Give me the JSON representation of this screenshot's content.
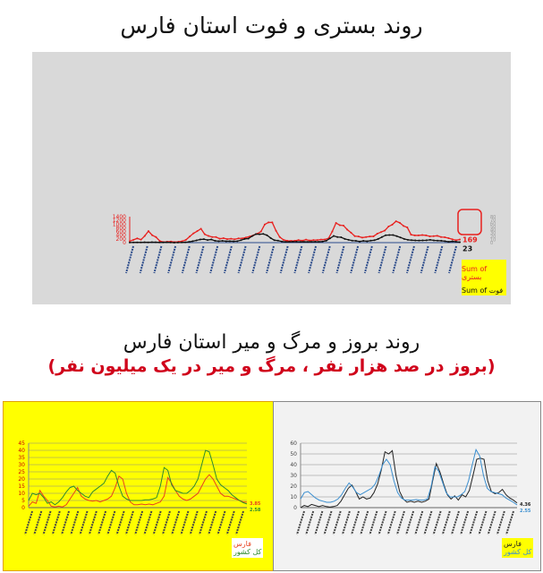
{
  "titles": {
    "top": "روند بستری و فوت استان فارس",
    "bottom": "روند بروز و مرگ و میر استان فارس",
    "bottom_sub": "(بروز در صد هزار نفر ، مرگ و میر در یک میلیون نفر)"
  },
  "chart_data": [
    {
      "type": "line",
      "ylim": [
        0,
        1400
      ],
      "yticks": [
        0,
        200,
        400,
        600,
        800,
        1000,
        1200,
        1400
      ],
      "y2ticks": [
        0,
        10,
        20,
        30,
        40,
        50,
        60,
        70,
        80
      ],
      "legend_position": "bottom-right",
      "annotations": [
        "169",
        "23"
      ],
      "series": [
        {
          "name": "Sum of بستری",
          "color": "#e8201e",
          "values": [
            80,
            150,
            230,
            160,
            360,
            620,
            400,
            300,
            90,
            30,
            50,
            60,
            30,
            50,
            80,
            150,
            330,
            500,
            620,
            750,
            450,
            360,
            300,
            300,
            210,
            240,
            190,
            210,
            180,
            230,
            230,
            280,
            330,
            400,
            480,
            600,
            980,
            1090,
            1090,
            640,
            300,
            150,
            100,
            95,
            100,
            140,
            110,
            160,
            115,
            140,
            140,
            165,
            170,
            230,
            600,
            1060,
            940,
            920,
            700,
            540,
            350,
            330,
            270,
            300,
            330,
            340,
            480,
            570,
            650,
            870,
            970,
            1150,
            1070,
            900,
            820,
            430,
            390,
            390,
            410,
            390,
            340,
            350,
            370,
            300,
            290,
            240,
            180,
            130,
            169
          ]
        },
        {
          "name": "Sum of فوت",
          "color": "#111111",
          "values": [
            5,
            10,
            15,
            10,
            20,
            15,
            25,
            20,
            10,
            15,
            20,
            10,
            0,
            5,
            10,
            20,
            40,
            80,
            120,
            170,
            185,
            140,
            170,
            100,
            80,
            95,
            75,
            80,
            70,
            80,
            130,
            200,
            220,
            350,
            460,
            450,
            470,
            400,
            250,
            130,
            110,
            60,
            40,
            40,
            50,
            50,
            40,
            45,
            40,
            45,
            50,
            45,
            60,
            100,
            230,
            360,
            300,
            290,
            200,
            150,
            110,
            95,
            60,
            95,
            75,
            110,
            130,
            200,
            300,
            400,
            410,
            410,
            350,
            280,
            200,
            150,
            130,
            120,
            115,
            120,
            125,
            150,
            120,
            110,
            100,
            80,
            45,
            70,
            50,
            23
          ]
        }
      ]
    },
    {
      "type": "line",
      "ylim": [
        0,
        45
      ],
      "yticks": [
        0,
        5,
        10,
        15,
        20,
        25,
        30,
        35,
        40,
        45
      ],
      "grid": true,
      "legend_position": "bottom-right",
      "end_labels": [
        "3.85",
        "2.58"
      ],
      "series": [
        {
          "name": "فارس",
          "color": "#e8401e",
          "values": [
            1,
            4,
            3,
            12,
            8,
            5,
            1,
            0.5,
            1,
            0.5,
            2,
            6,
            10,
            14,
            8,
            6,
            5,
            4.5,
            5,
            4,
            5,
            6,
            8,
            14,
            22,
            20,
            10,
            4,
            2,
            2,
            2.5,
            2,
            2.5,
            2,
            3,
            4,
            8,
            21,
            17,
            12,
            8,
            6,
            5,
            6,
            8,
            10,
            15,
            20,
            23,
            20,
            15,
            10,
            8,
            8,
            7,
            6,
            5,
            4,
            3.85
          ]
        },
        {
          "name": "کل کشور",
          "color": "#2e8b2e",
          "values": [
            5,
            10,
            9,
            10,
            7,
            3,
            4,
            2,
            4,
            7,
            11,
            14,
            15,
            12,
            10,
            8,
            7,
            11,
            13,
            15,
            17,
            22,
            26,
            24,
            15,
            8,
            6,
            5,
            5,
            5,
            5,
            5.5,
            5.5,
            6,
            7,
            15,
            28,
            26,
            16,
            12,
            11,
            10,
            10,
            12,
            15,
            20,
            30,
            40,
            39,
            30,
            20,
            16,
            14,
            12,
            9,
            7,
            5,
            3.5,
            2.58
          ]
        }
      ]
    },
    {
      "type": "line",
      "ylim": [
        0,
        60
      ],
      "yticks": [
        0,
        10,
        20,
        30,
        40,
        50,
        60
      ],
      "grid": true,
      "legend_position": "bottom-right",
      "end_labels": [
        "4.36",
        "2.55"
      ],
      "series": [
        {
          "name": "فارس",
          "color": "#222222",
          "values": [
            0,
            2,
            1,
            3,
            2,
            1,
            2,
            1,
            0.5,
            1,
            2,
            6,
            12,
            18,
            21,
            15,
            8,
            10,
            8,
            9,
            14,
            22,
            35,
            52,
            50,
            53,
            30,
            15,
            8,
            5,
            6,
            5,
            6,
            5,
            6,
            8,
            25,
            41,
            33,
            22,
            12,
            8,
            11,
            7,
            12,
            10,
            16,
            30,
            45,
            46,
            45,
            25,
            15,
            13,
            14,
            17,
            12,
            9,
            7,
            4.36
          ]
        },
        {
          "name": "کل کشور",
          "color": "#3b8fd0",
          "values": [
            8,
            14,
            15,
            12,
            9,
            7,
            6,
            5,
            5,
            6,
            8,
            12,
            18,
            23,
            19,
            14,
            12,
            14,
            16,
            18,
            22,
            30,
            40,
            45,
            40,
            25,
            14,
            9,
            7,
            7,
            7,
            7.5,
            7,
            7,
            8,
            20,
            38,
            34,
            24,
            14,
            10,
            10,
            10,
            12,
            15,
            25,
            40,
            54,
            48,
            30,
            18,
            15,
            14,
            13,
            12,
            9,
            7,
            5,
            2.55
          ]
        }
      ]
    }
  ]
}
